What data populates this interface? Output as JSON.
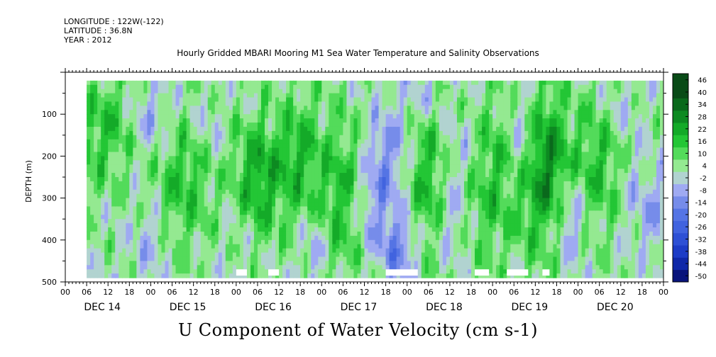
{
  "header": {
    "longitude": "LONGITUDE : 122W(-122)",
    "latitude": "LATITUDE : 36.8N",
    "year": "YEAR : 2012"
  },
  "colors": {
    "strong_positive": "#0b3d12",
    "positive": "#19c42b",
    "weak_positive": "#9be89c",
    "weak_negative": "#aab0f0",
    "negative": "#4a63e0",
    "strong_negative": "#06186e",
    "missing": "#ffffff"
  },
  "chart_data": {
    "type": "heatmap",
    "title": "Hourly Gridded MBARI Mooring M1 Sea Water Temperature and Salinity Observations",
    "xlabel": "",
    "ylabel": "DEPTH (m)",
    "colorbar_label": "U Component of Water Velocity (cm s-1)",
    "y_range": [
      500,
      0
    ],
    "y_reversed": true,
    "y_ticks": [
      100,
      200,
      300,
      400,
      500
    ],
    "x_range_hours": [
      0,
      168
    ],
    "x_hour_ticks": [
      "00",
      "06",
      "12",
      "18",
      "00",
      "06",
      "12",
      "18",
      "00",
      "06",
      "12",
      "18",
      "00",
      "06",
      "12",
      "18",
      "00",
      "06",
      "12",
      "18",
      "00",
      "06",
      "12",
      "18",
      "00",
      "06",
      "12",
      "18",
      "00"
    ],
    "x_day_labels": [
      "DEC 14",
      "DEC 15",
      "DEC 16",
      "DEC 17",
      "DEC 18",
      "DEC 19",
      "DEC 20"
    ],
    "data_depth_range_m": [
      20,
      485
    ],
    "data_hour_range": [
      6,
      168
    ],
    "colorbar_levels": [
      -50,
      -44,
      -38,
      -32,
      -26,
      -20,
      -14,
      -8,
      -2,
      4,
      10,
      16,
      22,
      28,
      34,
      40,
      46
    ],
    "colorbar_tick_labels": [
      "46",
      "40",
      "34",
      "28",
      "22",
      "16",
      "10",
      "4",
      "-2",
      "-8",
      "-14",
      "-20",
      "-26",
      "-32",
      "-38",
      "-44",
      "-50"
    ],
    "pattern_summary": "alternating bands of positive (green) and negative (blue) velocity; strongest negative near 200 m around 00 Dec 18 and near 430 m around 18 Dec 17; strongest positive near 250 m around 06 Dec 16 and 12 Dec 19",
    "missing_data_hours": [
      [
        48,
        51
      ],
      [
        57,
        60
      ],
      [
        90,
        99
      ],
      [
        115,
        119
      ],
      [
        124,
        130
      ],
      [
        134,
        136
      ]
    ]
  }
}
